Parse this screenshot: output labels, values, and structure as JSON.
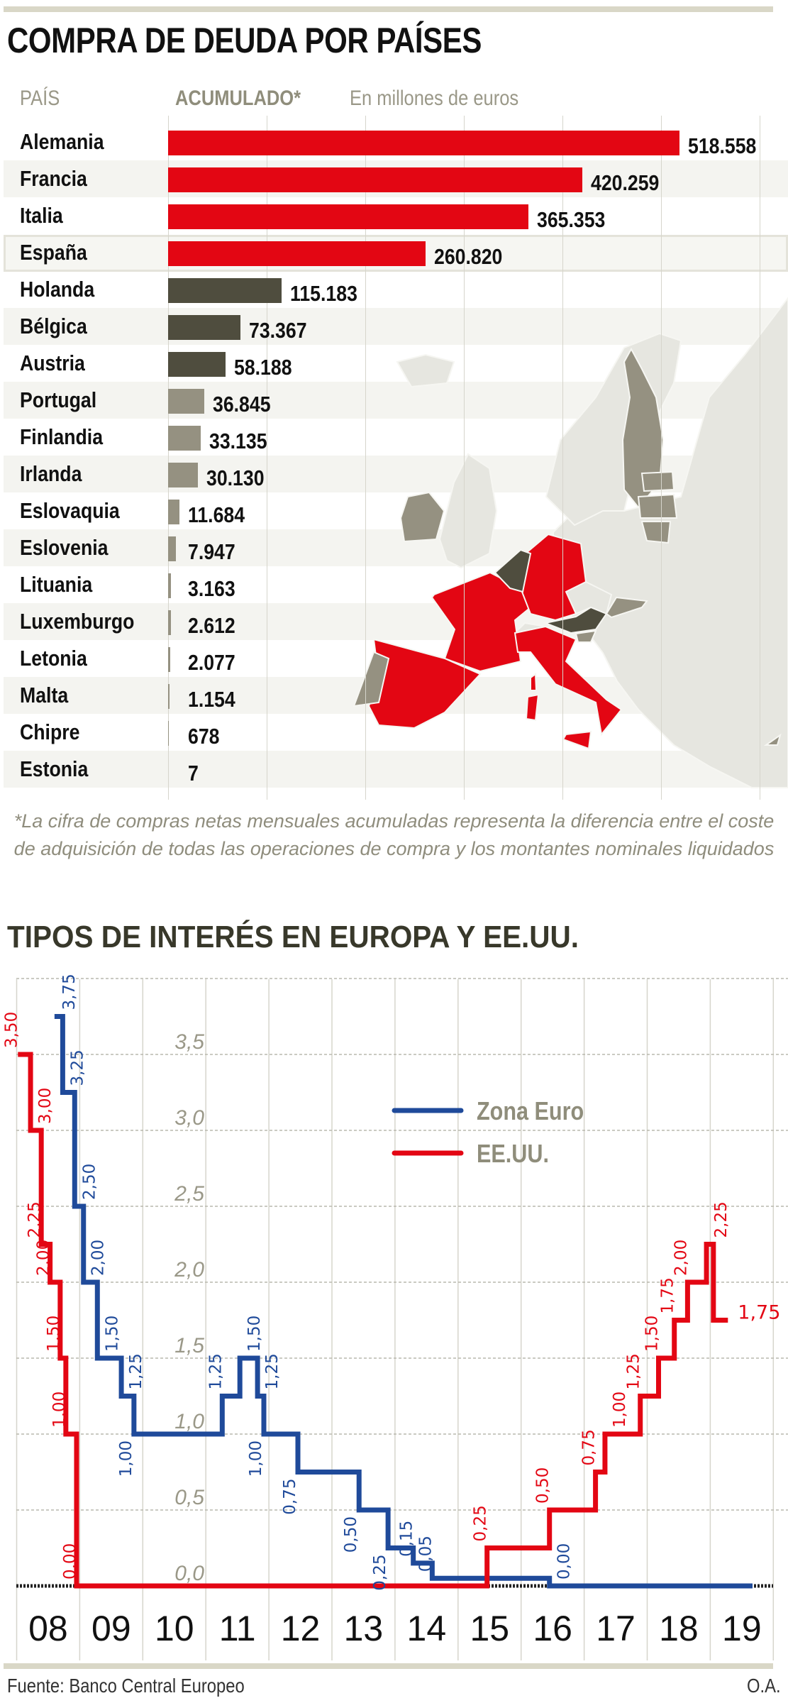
{
  "colors": {
    "red": "#e30613",
    "dark": "#4f4d3e",
    "light": "#959181",
    "blue": "#1f4a9a",
    "grid": "#d6d5cc",
    "band": "#f4f4f0"
  },
  "chart_data": [
    {
      "type": "bar",
      "title": "COMPRA DE DEUDA POR PAÍSES",
      "header": {
        "country_label": "PAÍS",
        "value_label": "ACUMULADO*",
        "unit_label": "En millones de euros"
      },
      "categories": [
        "Alemania",
        "Francia",
        "Italia",
        "España",
        "Holanda",
        "Bélgica",
        "Austria",
        "Portugal",
        "Finlandia",
        "Irlanda",
        "Eslovaquia",
        "Eslovenia",
        "Lituania",
        "Luxemburgo",
        "Letonia",
        "Malta",
        "Chipre",
        "Estonia"
      ],
      "values": [
        518558,
        420259,
        365353,
        260820,
        115183,
        73367,
        58188,
        36845,
        33135,
        30130,
        11684,
        7947,
        3163,
        2612,
        2077,
        1154,
        678,
        7
      ],
      "value_labels": [
        "518.558",
        "420.259",
        "365.353",
        "260.820",
        "115.183",
        "73.367",
        "58.188",
        "36.845",
        "33.135",
        "30.130",
        "11.684",
        "7.947",
        "3.163",
        "2.612",
        "2.077",
        "1.154",
        "678",
        "7"
      ],
      "tiers": [
        "red",
        "red",
        "red",
        "red",
        "dark",
        "dark",
        "dark",
        "light",
        "light",
        "light",
        "light",
        "light",
        "light",
        "light",
        "light",
        "light",
        "light",
        "light"
      ],
      "highlight": "España",
      "xlim": [
        0,
        600000
      ],
      "footnote": "*La cifra de compras netas mensuales acumuladas representa la diferencia entre el coste de adquisición de todas las operaciones de compra y los montantes nominales liquidados"
    },
    {
      "type": "line",
      "title": "TIPOS DE INTERÉS EN EUROPA Y EE.UU.",
      "xlim": [
        2008,
        2020
      ],
      "ylim": [
        0,
        4
      ],
      "x_ticks": [
        "08",
        "09",
        "10",
        "11",
        "12",
        "13",
        "14",
        "15",
        "16",
        "17",
        "18",
        "19"
      ],
      "y_ticks": [
        {
          "value": 0,
          "label": "0,0"
        },
        {
          "value": 0.5,
          "label": "0,5"
        },
        {
          "value": 1,
          "label": "1,0"
        },
        {
          "value": 1.5,
          "label": "1,5"
        },
        {
          "value": 2,
          "label": "2,0"
        },
        {
          "value": 2.5,
          "label": "2,5"
        },
        {
          "value": 3,
          "label": "3,0"
        },
        {
          "value": 3.5,
          "label": "3,5"
        }
      ],
      "grid": true,
      "legend_position": "top-center",
      "series": [
        {
          "name": "Zona Euro",
          "color": "#1f4a9a",
          "end": 2019.67,
          "steps": [
            {
              "x": 2008.6,
              "y": 3.75,
              "label": "3,75",
              "pos": "above-right"
            },
            {
              "x": 2008.73,
              "y": 3.25,
              "label": "3,25",
              "pos": "above-right"
            },
            {
              "x": 2008.92,
              "y": 2.5,
              "label": "2,50",
              "pos": "above-right"
            },
            {
              "x": 2009.06,
              "y": 2.0,
              "label": "2,00",
              "pos": "above-right"
            },
            {
              "x": 2009.28,
              "y": 1.5,
              "label": "1,50",
              "pos": "above-right"
            },
            {
              "x": 2009.66,
              "y": 1.25,
              "label": "1,25",
              "pos": "above-right"
            },
            {
              "x": 2009.86,
              "y": 1.0,
              "label": "1,00",
              "pos": "below-left"
            },
            {
              "x": 2011.26,
              "y": 1.25,
              "label": "1,25",
              "pos": "above-left"
            },
            {
              "x": 2011.54,
              "y": 1.5,
              "label": "1,50",
              "pos": "above-right"
            },
            {
              "x": 2011.82,
              "y": 1.25,
              "label": "1,25",
              "pos": "above-right"
            },
            {
              "x": 2011.92,
              "y": 1.0,
              "label": "1,00",
              "pos": "below-left"
            },
            {
              "x": 2012.46,
              "y": 0.75,
              "label": "0,75",
              "pos": "below-left"
            },
            {
              "x": 2013.43,
              "y": 0.5,
              "label": "0,50",
              "pos": "below-left"
            },
            {
              "x": 2013.89,
              "y": 0.25,
              "label": "0,25",
              "pos": "below-left"
            },
            {
              "x": 2014.29,
              "y": 0.15,
              "label": "0,15",
              "pos": "above-left"
            },
            {
              "x": 2014.59,
              "y": 0.05,
              "label": "0,05",
              "pos": "above-left"
            },
            {
              "x": 2016.45,
              "y": 0.0,
              "label": "0,00",
              "pos": "above-right"
            }
          ]
        },
        {
          "name": "EE.UU.",
          "color": "#e30613",
          "end": 2019.28,
          "steps": [
            {
              "x": 2008.02,
              "y": 3.5,
              "label": "3,50",
              "pos": "above-left"
            },
            {
              "x": 2008.22,
              "y": 3.0,
              "label": "3,00",
              "pos": "above-right"
            },
            {
              "x": 2008.39,
              "y": 2.25,
              "label": "2,25",
              "pos": "above-left"
            },
            {
              "x": 2008.53,
              "y": 2.0,
              "label": "2,00",
              "pos": "above-left"
            },
            {
              "x": 2008.69,
              "y": 1.5,
              "label": "1,50",
              "pos": "above-left"
            },
            {
              "x": 2008.78,
              "y": 1.0,
              "label": "1,00",
              "pos": "above-left"
            },
            {
              "x": 2008.95,
              "y": 0.0,
              "label": "0,00",
              "pos": "above-left"
            },
            {
              "x": 2015.46,
              "y": 0.25,
              "label": "0,25",
              "pos": "above-left"
            },
            {
              "x": 2016.45,
              "y": 0.5,
              "label": "0,50",
              "pos": "above-left"
            },
            {
              "x": 2017.18,
              "y": 0.75,
              "label": "0,75",
              "pos": "above-left"
            },
            {
              "x": 2017.33,
              "y": 1.0,
              "label": "1,00",
              "pos": "above-right"
            },
            {
              "x": 2017.89,
              "y": 1.25,
              "label": "1,25",
              "pos": "above-left"
            },
            {
              "x": 2018.18,
              "y": 1.5,
              "label": "1,50",
              "pos": "above-left"
            },
            {
              "x": 2018.43,
              "y": 1.75,
              "label": "1,75",
              "pos": "above-left"
            },
            {
              "x": 2018.64,
              "y": 2.0,
              "label": "2,00",
              "pos": "above-left"
            },
            {
              "x": 2018.94,
              "y": 2.25,
              "label": "2,25",
              "pos": "above-right"
            },
            {
              "x": 2019.05,
              "y": 1.75,
              "label": "1,75",
              "pos": "end-right"
            }
          ]
        }
      ],
      "source": "Fuente: Banco Central Europeo",
      "credit": "O.A."
    }
  ]
}
